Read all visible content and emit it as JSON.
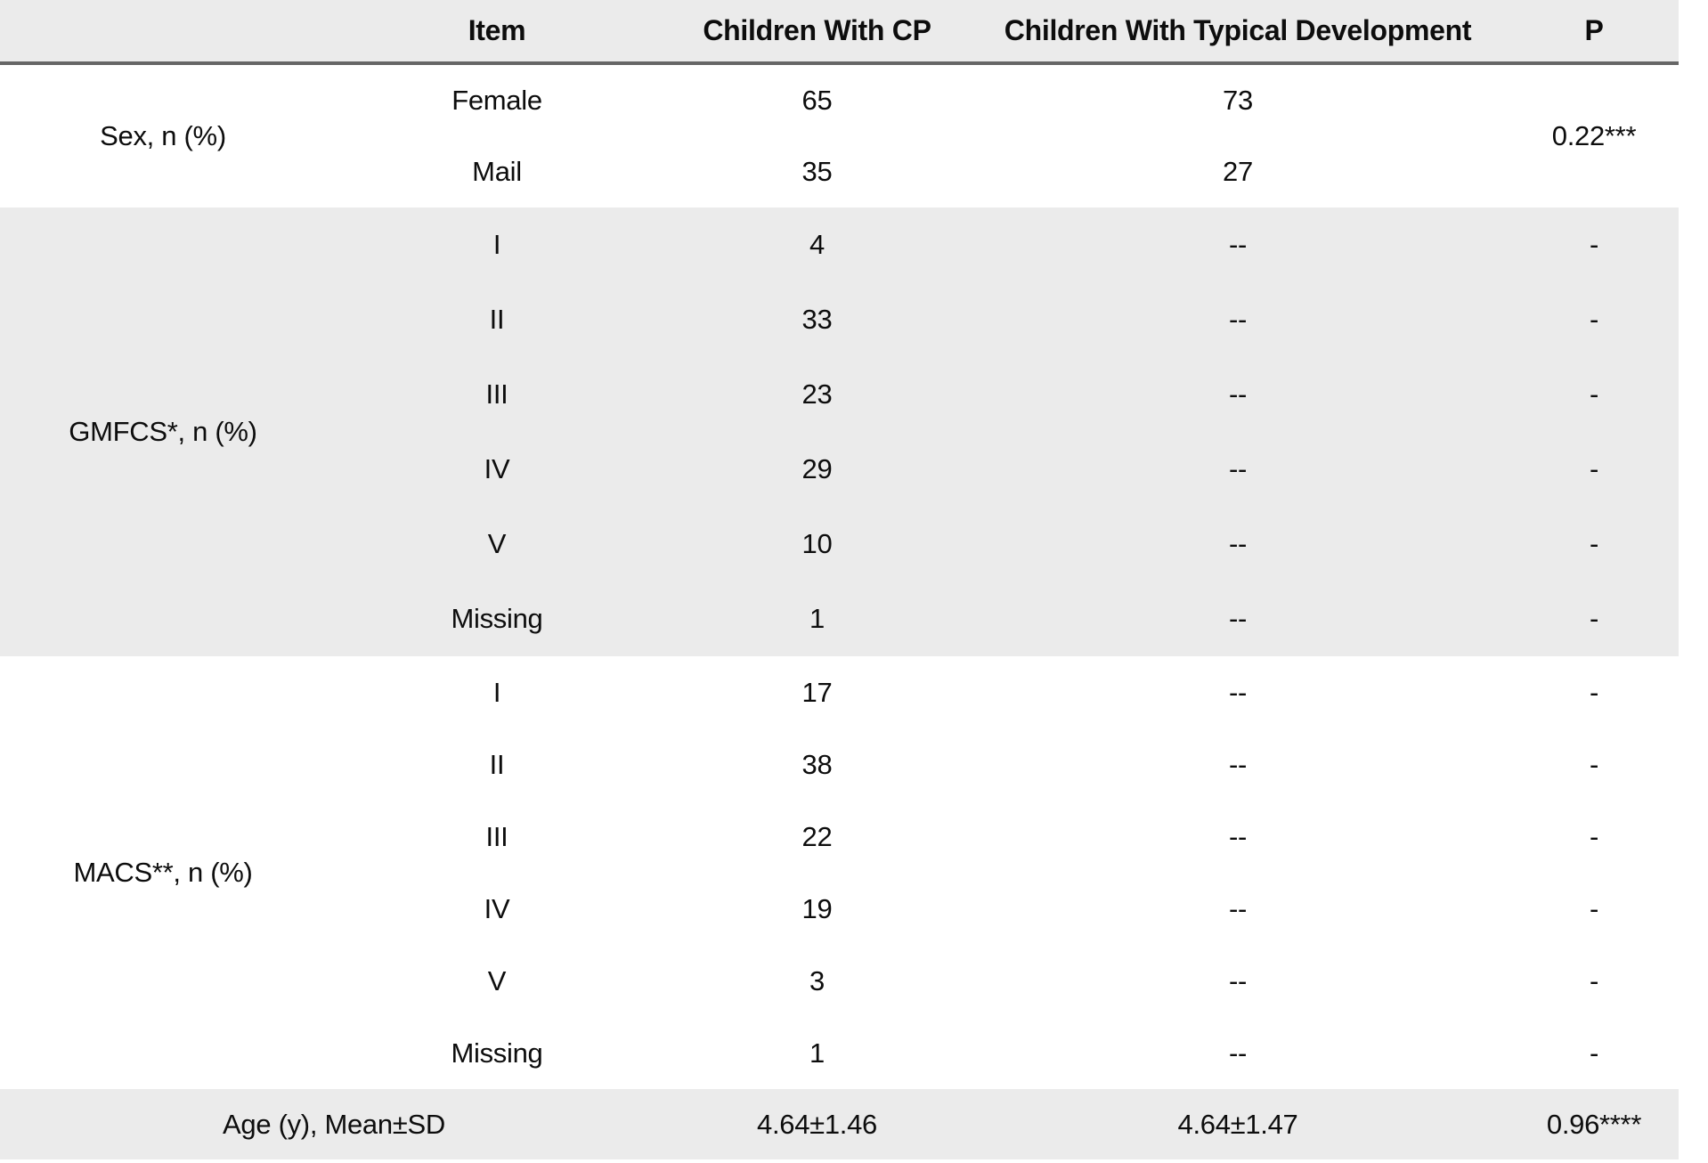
{
  "header": {
    "col_group": "",
    "col_item": "Item",
    "col_cp": "Children With CP",
    "col_td": "Children With Typical Development",
    "col_p": "P"
  },
  "sections": {
    "sex": {
      "label": "Sex, n (%)",
      "p": "0.22***",
      "rows": [
        {
          "item": "Female",
          "cp": "65",
          "td": "73"
        },
        {
          "item": "Mail",
          "cp": "35",
          "td": "27"
        }
      ]
    },
    "gmfcs": {
      "label": "GMFCS*, n (%)",
      "rows": [
        {
          "item": "I",
          "cp": "4",
          "td": "--",
          "p": "-"
        },
        {
          "item": "II",
          "cp": "33",
          "td": "--",
          "p": "-"
        },
        {
          "item": "III",
          "cp": "23",
          "td": "--",
          "p": "-"
        },
        {
          "item": "IV",
          "cp": "29",
          "td": "--",
          "p": "-"
        },
        {
          "item": "V",
          "cp": "10",
          "td": "--",
          "p": "-"
        },
        {
          "item": "Missing",
          "cp": "1",
          "td": "--",
          "p": "-"
        }
      ]
    },
    "macs": {
      "label": "MACS**, n (%)",
      "rows": [
        {
          "item": "I",
          "cp": "17",
          "td": "--",
          "p": "-"
        },
        {
          "item": "II",
          "cp": "38",
          "td": "--",
          "p": "-"
        },
        {
          "item": "III",
          "cp": "22",
          "td": "--",
          "p": "-"
        },
        {
          "item": "IV",
          "cp": "19",
          "td": "--",
          "p": "-"
        },
        {
          "item": "V",
          "cp": "3",
          "td": "--",
          "p": "-"
        },
        {
          "item": "Missing",
          "cp": "1",
          "td": "--",
          "p": "-"
        }
      ]
    },
    "age": {
      "label": "Age (y), Mean±SD",
      "cp": "4.64±1.46",
      "td": "4.64±1.47",
      "p": "0.96****"
    }
  },
  "colors": {
    "band_gray": "#ebebeb",
    "header_rule": "#666666",
    "text": "#0d0d0d",
    "background": "#ffffff"
  }
}
